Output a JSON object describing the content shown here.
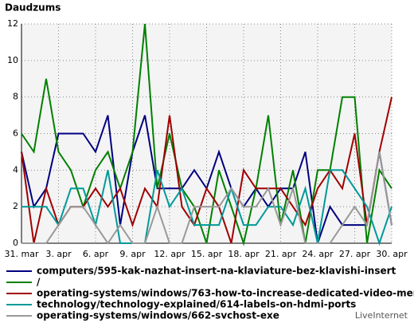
{
  "chart_data": {
    "type": "line",
    "title": "Daudzums",
    "categories": [
      "31. mar",
      null,
      null,
      "3. apr",
      null,
      null,
      "6. apr",
      null,
      null,
      "9. apr",
      null,
      null,
      "12. apr",
      null,
      null,
      "15. apr",
      null,
      null,
      "18. apr",
      null,
      null,
      "21. apr",
      null,
      null,
      "24. apr",
      null,
      null,
      "27. apr",
      null,
      null,
      "30. apr"
    ],
    "series": [
      {
        "name": "computers/595-kak-nazhat-insert-na-klaviature-bez-klavishi-insert",
        "color": "#000080",
        "values": [
          5,
          2,
          3,
          6,
          6,
          6,
          5,
          7,
          1,
          5,
          7,
          3,
          3,
          3,
          4,
          3,
          5,
          3,
          2,
          3,
          2,
          3,
          3,
          5,
          0,
          2,
          1,
          1,
          1,
          5,
          1
        ]
      },
      {
        "name": "/",
        "color": "#008000",
        "values": [
          6,
          5,
          9,
          5,
          4,
          2,
          4,
          5,
          3,
          5,
          12,
          3,
          6,
          3,
          2,
          0,
          4,
          2,
          0,
          3,
          7,
          1,
          4,
          0,
          4,
          4,
          8,
          8,
          0,
          4,
          3
        ]
      },
      {
        "name": "operating-systems/windows/763-how-to-increase-dedicated-video-memory",
        "color": "#a00000",
        "values": [
          5,
          0,
          3,
          1,
          2,
          2,
          3,
          2,
          3,
          1,
          3,
          2,
          7,
          2,
          1,
          3,
          2,
          0,
          4,
          3,
          3,
          3,
          2,
          1,
          3,
          4,
          3,
          6,
          1,
          5,
          8
        ]
      },
      {
        "name": "technology/technology-explained/614-labels-on-hdmi-ports",
        "color": "#009999",
        "values": [
          2,
          2,
          2,
          1,
          3,
          3,
          1,
          4,
          0,
          0,
          0,
          4,
          2,
          3,
          1,
          1,
          1,
          3,
          1,
          1,
          2,
          2,
          1,
          3,
          0,
          4,
          4,
          3,
          2,
          0,
          2
        ]
      },
      {
        "name": "operating-systems/windows/662-svchost-exe",
        "color": "#999999",
        "values": [
          0,
          0,
          0,
          1,
          2,
          2,
          1,
          0,
          1,
          0,
          0,
          2,
          0,
          0,
          2,
          2,
          2,
          3,
          2,
          2,
          3,
          1,
          3,
          0,
          0,
          0,
          1,
          2,
          1,
          5,
          1
        ]
      }
    ],
    "ylim": [
      0,
      12
    ],
    "yticks": [
      0,
      2,
      4,
      6,
      8,
      10,
      12
    ],
    "grid": true,
    "watermark": "LiveInternet"
  }
}
